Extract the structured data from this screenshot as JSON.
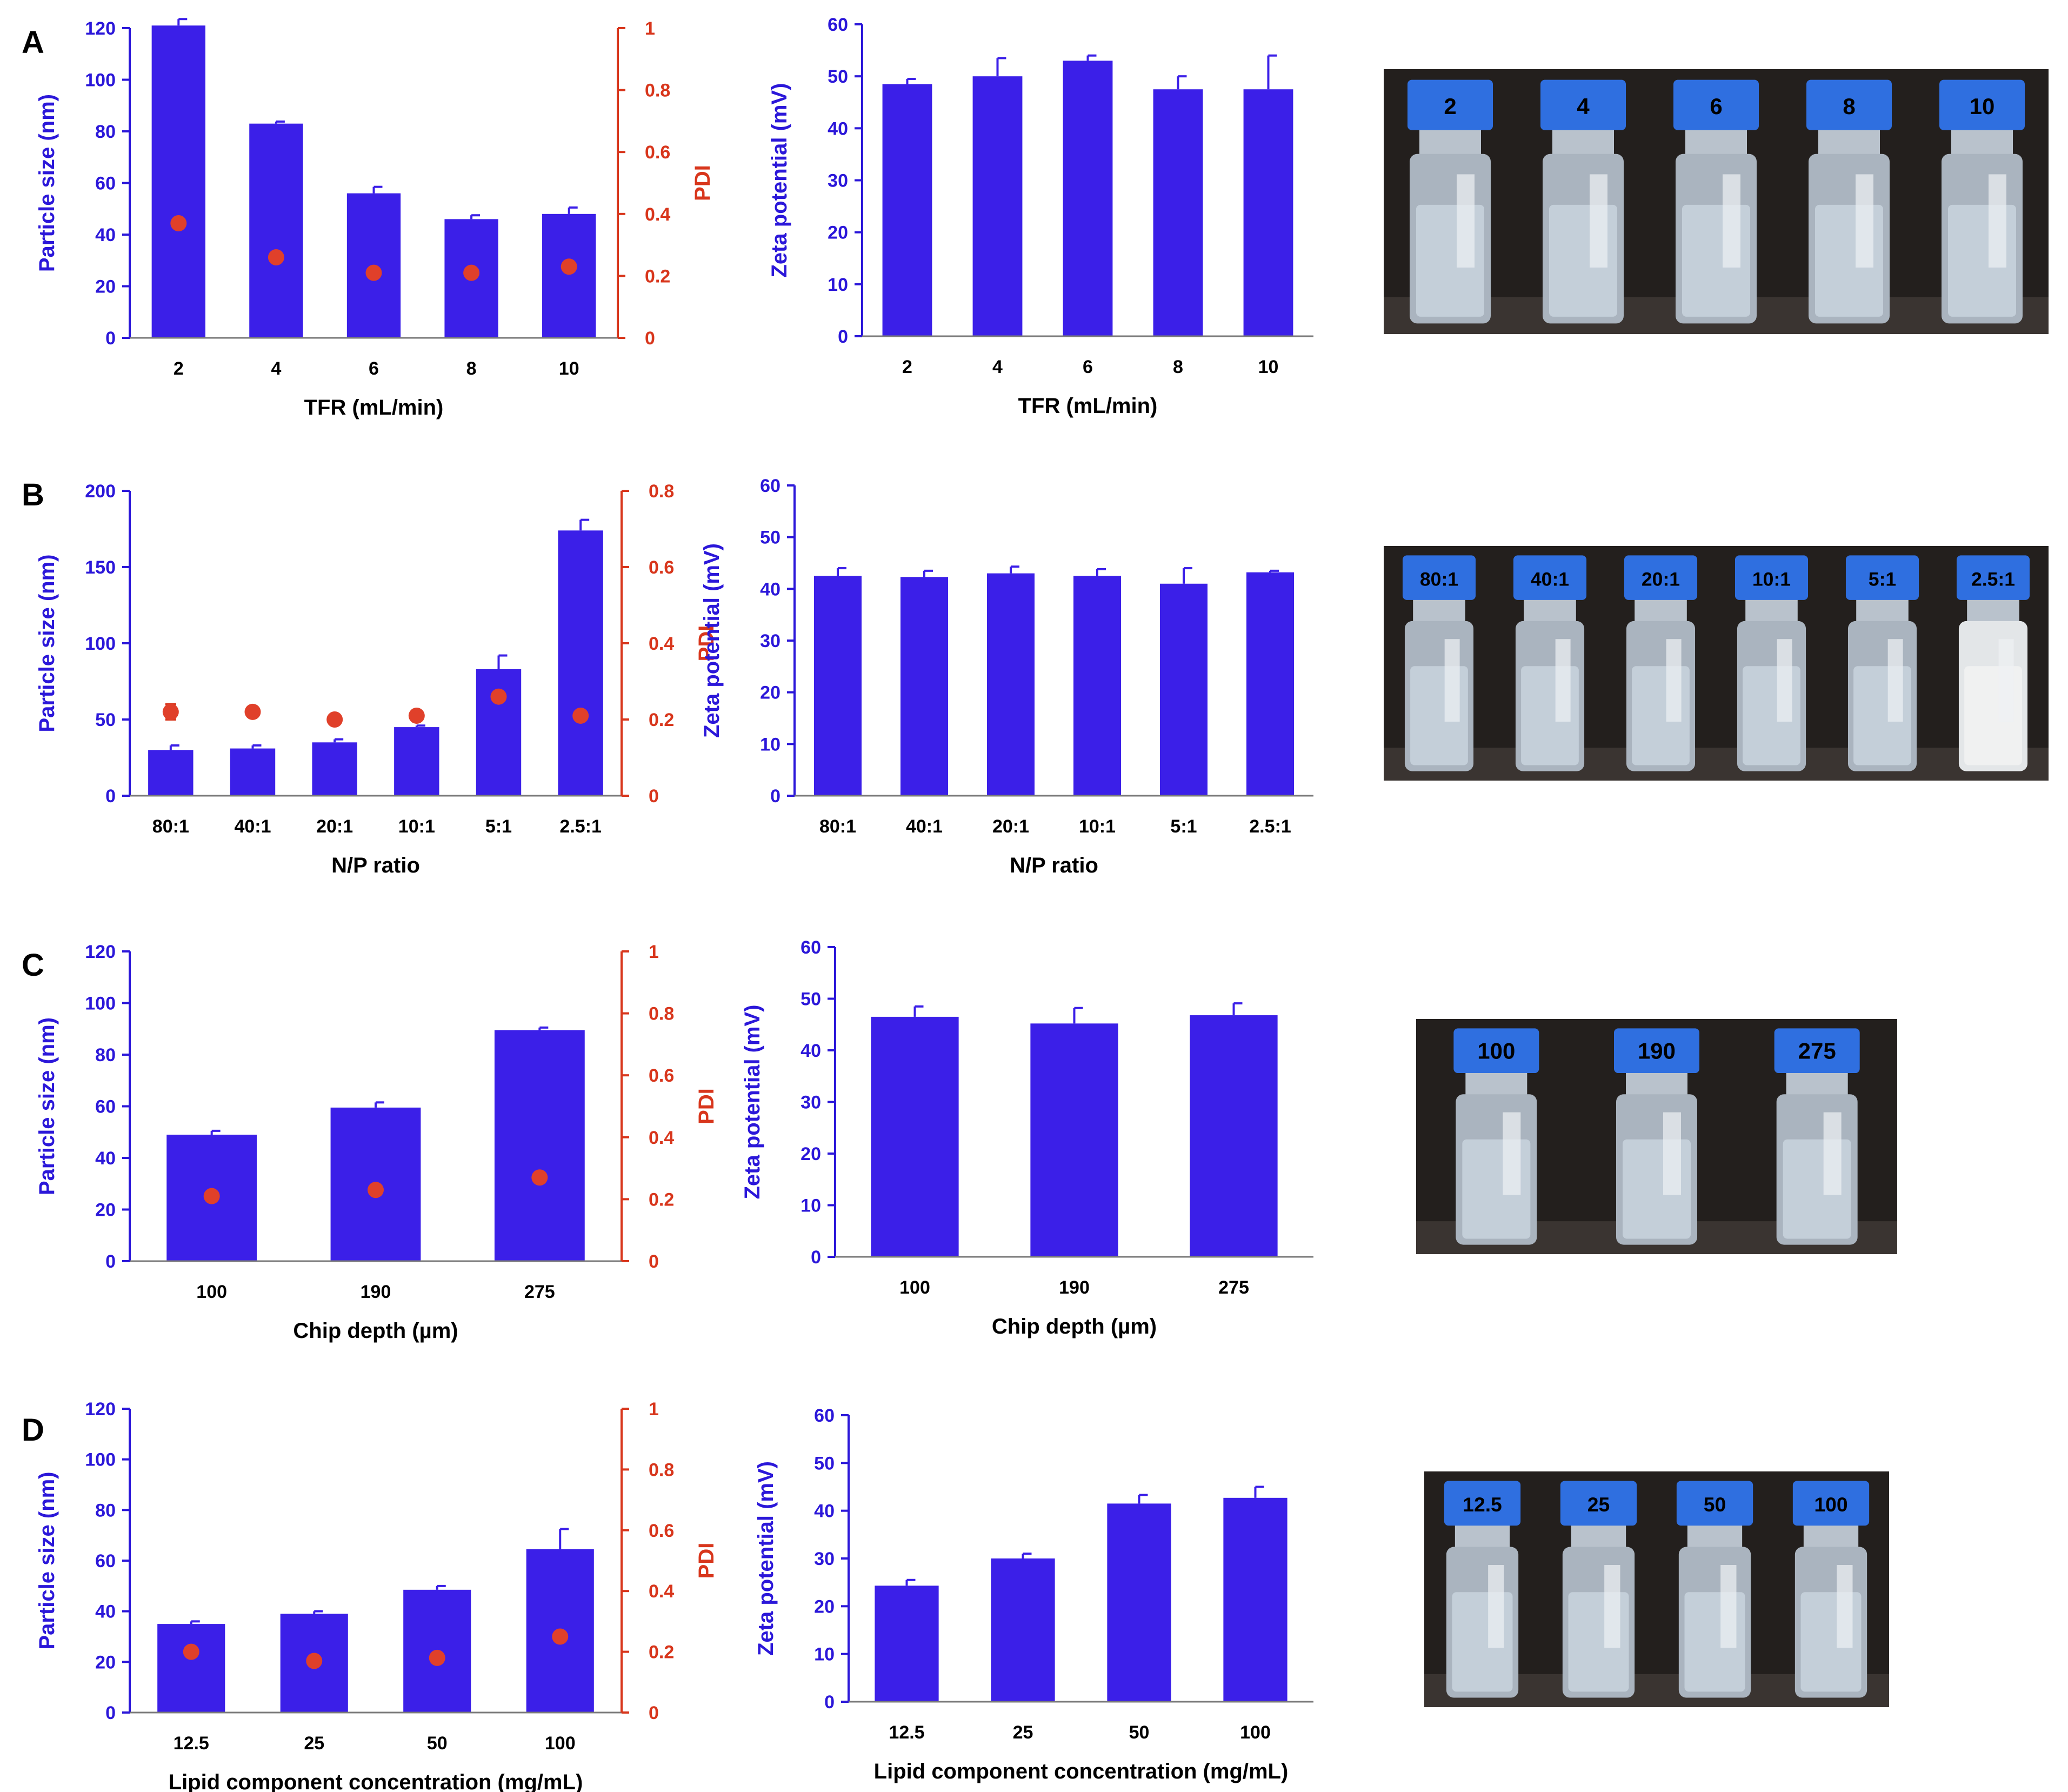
{
  "colors": {
    "bar": "#3b1fe8",
    "left_axis": "#2b17d9",
    "right_axis": "#d8361c",
    "pdi_marker": "#e0402a",
    "text": "#000000",
    "photo_bg": "#231f1d",
    "vial_cap": "#2f6fe0"
  },
  "panels": [
    {
      "letter": "A",
      "photo": {
        "vial_labels": [
          "2",
          "4",
          "6",
          "8",
          "10"
        ],
        "cloudy": [
          false,
          false,
          false,
          false,
          false
        ]
      },
      "chart_data": [
        {
          "type": "bar",
          "categories": [
            "2",
            "4",
            "6",
            "8",
            "10"
          ],
          "xlabel": "TFR (mL/min)",
          "ylabel": "Particle size (nm)",
          "ylim": [
            0,
            120
          ],
          "yticks": [
            0,
            20,
            40,
            60,
            80,
            100,
            120
          ],
          "values": [
            121,
            83,
            56,
            46,
            48
          ],
          "errors": [
            2.5,
            0.8,
            2.5,
            1.5,
            2.5
          ],
          "y2label": "PDI",
          "y2lim": [
            0,
            1
          ],
          "y2ticks": [
            "0",
            "0.2",
            "0.4",
            "0.6",
            "0.8",
            "1"
          ],
          "pdi": [
            0.37,
            0.26,
            0.21,
            0.21,
            0.23
          ],
          "pdi_err": [
            0,
            0,
            0,
            0,
            0
          ]
        },
        {
          "type": "bar",
          "categories": [
            "2",
            "4",
            "6",
            "8",
            "10"
          ],
          "xlabel": "TFR (mL/min)",
          "ylabel": "Zeta potential (mV)",
          "ylim": [
            0,
            60
          ],
          "yticks": [
            0,
            10,
            20,
            30,
            40,
            50,
            60
          ],
          "values": [
            48.5,
            50,
            53,
            47.5,
            47.5
          ],
          "errors": [
            1,
            3.5,
            1,
            2.5,
            6.5
          ]
        }
      ]
    },
    {
      "letter": "B",
      "photo": {
        "vial_labels": [
          "80:1",
          "40:1",
          "20:1",
          "10:1",
          "5:1",
          "2.5:1"
        ],
        "cloudy": [
          false,
          false,
          false,
          false,
          false,
          true
        ]
      },
      "chart_data": [
        {
          "type": "bar",
          "categories": [
            "80:1",
            "40:1",
            "20:1",
            "10:1",
            "5:1",
            "2.5:1"
          ],
          "xlabel": "N/P ratio",
          "ylabel": "Particle size (nm)",
          "ylim": [
            0,
            200
          ],
          "yticks": [
            0,
            50,
            100,
            150,
            200
          ],
          "values": [
            30,
            31,
            35,
            45,
            83,
            174
          ],
          "errors": [
            3,
            2,
            2,
            1,
            9,
            7
          ],
          "y2label": "PDI",
          "y2lim": [
            0,
            0.8
          ],
          "y2ticks": [
            "0",
            "0.2",
            "0.4",
            "0.6",
            "0.8"
          ],
          "pdi": [
            0.22,
            0.22,
            0.2,
            0.21,
            0.26,
            0.21
          ],
          "pdi_err": [
            0.02,
            0,
            0,
            0,
            0,
            0
          ]
        },
        {
          "type": "bar",
          "categories": [
            "80:1",
            "40:1",
            "20:1",
            "10:1",
            "5:1",
            "2.5:1"
          ],
          "xlabel": "N/P ratio",
          "ylabel": "Zeta potential (mV)",
          "ylim": [
            0,
            60
          ],
          "yticks": [
            0,
            10,
            20,
            30,
            40,
            50,
            60
          ],
          "values": [
            42.5,
            42.3,
            43,
            42.5,
            41,
            43.2
          ],
          "errors": [
            1.5,
            1.2,
            1.3,
            1.3,
            3,
            0.3
          ]
        }
      ]
    },
    {
      "letter": "C",
      "photo": {
        "vial_labels": [
          "100",
          "190",
          "275"
        ],
        "cloudy": [
          false,
          false,
          false
        ]
      },
      "chart_data": [
        {
          "type": "bar",
          "categories": [
            "100",
            "190",
            "275"
          ],
          "xlabel": "Chip depth (µm)",
          "ylabel": "Particle size (nm)",
          "ylim": [
            0,
            120
          ],
          "yticks": [
            0,
            20,
            40,
            60,
            80,
            100,
            120
          ],
          "values": [
            49,
            59.5,
            89.5
          ],
          "errors": [
            1.5,
            2,
            1
          ],
          "y2label": "PDI",
          "y2lim": [
            0,
            1
          ],
          "y2ticks": [
            "0",
            "0.2",
            "0.4",
            "0.6",
            "0.8",
            "1"
          ],
          "pdi": [
            0.21,
            0.23,
            0.27
          ],
          "pdi_err": [
            0,
            0,
            0
          ]
        },
        {
          "type": "bar",
          "categories": [
            "100",
            "190",
            "275"
          ],
          "xlabel": "Chip depth (µm)",
          "ylabel": "Zeta potential (mV)",
          "ylim": [
            0,
            60
          ],
          "yticks": [
            0,
            10,
            20,
            30,
            40,
            50,
            60
          ],
          "values": [
            46.5,
            45.2,
            46.8
          ],
          "errors": [
            2,
            3,
            2.3
          ]
        }
      ]
    },
    {
      "letter": "D",
      "photo": {
        "vial_labels": [
          "12.5",
          "25",
          "50",
          "100"
        ],
        "cloudy": [
          false,
          false,
          false,
          false
        ]
      },
      "chart_data": [
        {
          "type": "bar",
          "categories": [
            "12.5",
            "25",
            "50",
            "100"
          ],
          "xlabel": "Lipid component concentration (mg/mL)",
          "ylabel": "Particle size (nm)",
          "ylim": [
            0,
            120
          ],
          "yticks": [
            0,
            20,
            40,
            60,
            80,
            100,
            120
          ],
          "values": [
            35,
            39,
            48.5,
            64.5
          ],
          "errors": [
            1,
            1,
            1.5,
            8
          ],
          "y2label": "PDI",
          "y2lim": [
            0,
            1
          ],
          "y2ticks": [
            "0",
            "0.2",
            "0.4",
            "0.6",
            "0.8",
            "1"
          ],
          "pdi": [
            0.2,
            0.17,
            0.18,
            0.25
          ],
          "pdi_err": [
            0,
            0,
            0,
            0
          ]
        },
        {
          "type": "bar",
          "categories": [
            "12.5",
            "25",
            "50",
            "100"
          ],
          "xlabel": "Lipid component concentration (mg/mL)",
          "ylabel": "Zeta potential (mV)",
          "ylim": [
            0,
            60
          ],
          "yticks": [
            0,
            10,
            20,
            30,
            40,
            50,
            60
          ],
          "values": [
            24.3,
            30,
            41.5,
            42.7
          ],
          "errors": [
            1.2,
            1,
            1.8,
            2.3
          ]
        }
      ]
    }
  ]
}
